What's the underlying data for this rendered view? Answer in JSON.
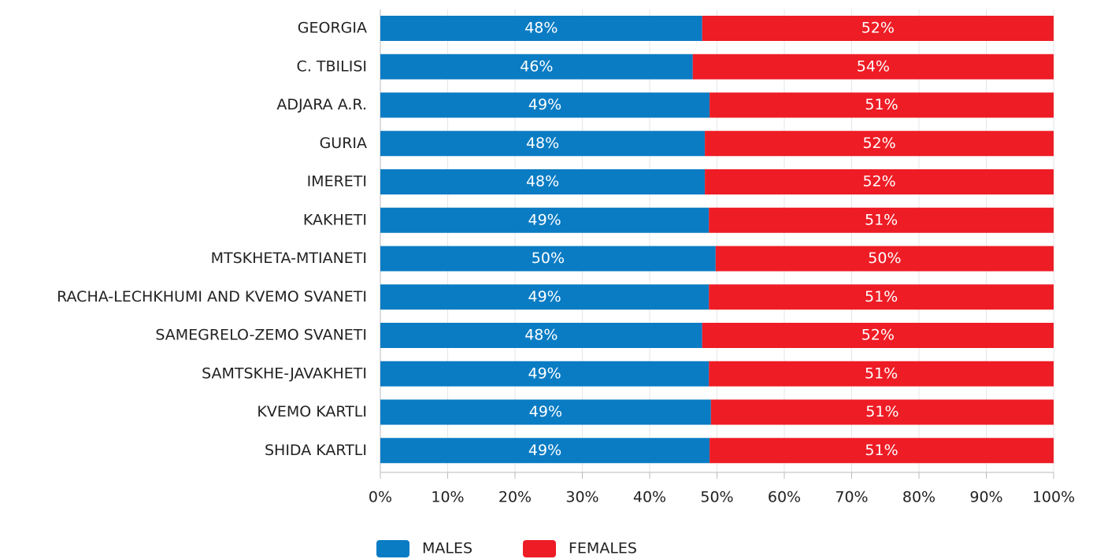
{
  "chart_data": {
    "type": "stacked_barh",
    "categories": [
      "GEORGIA",
      "C. TBILISI",
      "ADJARA A.R.",
      "GURIA",
      "IMERETI",
      "KAKHETI",
      "MTSKHETA-MTIANETI",
      "RACHA-LECHKHUMI AND KVEMO SVANETI",
      "SAMEGRELO-ZEMO SVANETI",
      "SAMTSKHE-JAVAKHETI",
      "KVEMO KARTLI",
      "SHIDA KARTLI"
    ],
    "series": [
      {
        "name": "MALES",
        "color": "#0a7cc4",
        "values": [
          47.8,
          46.4,
          48.9,
          48.2,
          48.2,
          48.8,
          49.8,
          48.8,
          47.8,
          48.8,
          49.1,
          48.9
        ],
        "value_labels": [
          "48%",
          "46%",
          "49%",
          "48%",
          "48%",
          "49%",
          "50%",
          "49%",
          "48%",
          "49%",
          "49%",
          "49%"
        ]
      },
      {
        "name": "FEMALES",
        "color": "#ee1c25",
        "values": [
          52.2,
          53.6,
          51.1,
          51.8,
          51.8,
          51.2,
          50.2,
          51.2,
          52.2,
          51.2,
          50.9,
          51.1
        ],
        "value_labels": [
          "52%",
          "54%",
          "51%",
          "52%",
          "52%",
          "51%",
          "50%",
          "51%",
          "52%",
          "51%",
          "51%",
          "51%"
        ]
      }
    ],
    "xlim": [
      0,
      100
    ],
    "xticks": [
      {
        "value": 0,
        "label": "0%"
      },
      {
        "value": 10,
        "label": "10%"
      },
      {
        "value": 20,
        "label": "20%"
      },
      {
        "value": 30,
        "label": "30%"
      },
      {
        "value": 40,
        "label": "40%"
      },
      {
        "value": 50,
        "label": "50%"
      },
      {
        "value": 60,
        "label": "60%"
      },
      {
        "value": 70,
        "label": "70%"
      },
      {
        "value": 80,
        "label": "80%"
      },
      {
        "value": 90,
        "label": "90%"
      },
      {
        "value": 100,
        "label": "100%"
      }
    ],
    "grid": true,
    "legend": "bottom"
  }
}
